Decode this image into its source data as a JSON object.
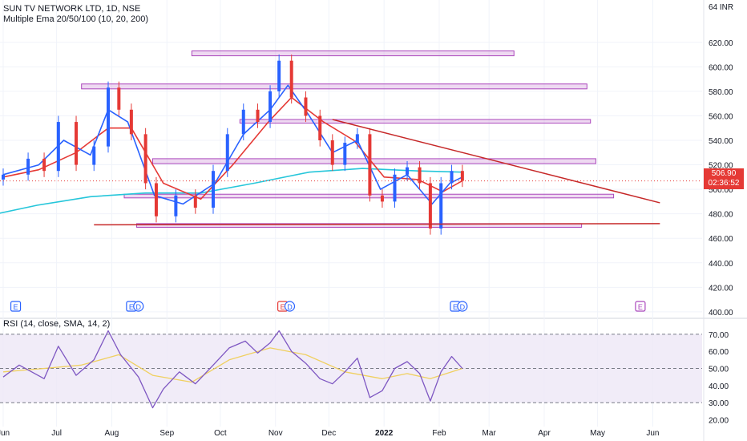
{
  "header": {
    "symbol_line": "SUN TV NETWORK LTD, 1D, NSE",
    "indicator_line": "Multiple Ema 20/50/100 (10, 20, 200)",
    "rsi_line": "RSI (14, close, SMA, 14, 2)",
    "currency_badge": "64 INR"
  },
  "last_price": {
    "value": "506.90",
    "countdown": "02:36:52",
    "color": "#e53935"
  },
  "colors": {
    "up_candle": "#2962ff",
    "down_candle": "#e53935",
    "ema_fast": "#2962ff",
    "ema_mid": "#e53935",
    "ema_slow": "#26c6da",
    "zones": "#ab47bc",
    "trendline": "#c62828",
    "rsi_line": "#7e57c2",
    "rsi_sma": "#f0d060",
    "rsi_band": "#ede7f6"
  },
  "event_markers": [
    {
      "label": "E",
      "x_date": "2021-06-08",
      "type": "earnings",
      "color": "#2962ff"
    },
    {
      "label": "E",
      "x_date": "2021-08-12",
      "type": "earnings",
      "color": "#2962ff"
    },
    {
      "label": "D",
      "x_date": "2021-08-16",
      "type": "dividend",
      "color": "#2962ff"
    },
    {
      "label": "E",
      "x_date": "2021-11-05",
      "type": "earnings",
      "color": "#e53935"
    },
    {
      "label": "D",
      "x_date": "2021-11-09",
      "type": "dividend",
      "color": "#2962ff"
    },
    {
      "label": "E",
      "x_date": "2022-02-10",
      "type": "earnings",
      "color": "#2962ff"
    },
    {
      "label": "D",
      "x_date": "2022-02-14",
      "type": "dividend",
      "color": "#2962ff"
    },
    {
      "label": "E",
      "x_date": "2022-05-25",
      "type": "earnings",
      "color": "#ab47bc"
    }
  ],
  "chart_data": [
    {
      "type": "candlestick",
      "title": "SUN TV NETWORK LTD, 1D, NSE",
      "x_ticks": [
        "Jun",
        "Jul",
        "Aug",
        "Sep",
        "Oct",
        "Nov",
        "Dec",
        "2022",
        "Feb",
        "Mar",
        "Apr",
        "May",
        "Jun"
      ],
      "y_ticks": [
        400,
        420,
        440,
        460,
        480,
        500,
        520,
        540,
        560,
        580,
        600,
        620
      ],
      "y_tick_labels": [
        "400.00",
        "420.00",
        "440.00",
        "460.00",
        "480.00",
        "500.00",
        "520.00",
        "540.00",
        "560.00",
        "580.00",
        "600.00",
        "620.00"
      ],
      "ylim": [
        396,
        648
      ],
      "grid": true,
      "close_series": [
        {
          "x": "2021-06-01",
          "y": 512
        },
        {
          "x": "2021-06-15",
          "y": 525
        },
        {
          "x": "2021-06-24",
          "y": 515
        },
        {
          "x": "2021-07-02",
          "y": 555
        },
        {
          "x": "2021-07-12",
          "y": 520
        },
        {
          "x": "2021-07-22",
          "y": 535
        },
        {
          "x": "2021-07-30",
          "y": 583
        },
        {
          "x": "2021-08-05",
          "y": 565
        },
        {
          "x": "2021-08-12",
          "y": 545
        },
        {
          "x": "2021-08-20",
          "y": 505
        },
        {
          "x": "2021-08-26",
          "y": 478
        },
        {
          "x": "2021-09-06",
          "y": 495
        },
        {
          "x": "2021-09-17",
          "y": 485
        },
        {
          "x": "2021-09-27",
          "y": 515
        },
        {
          "x": "2021-10-05",
          "y": 545
        },
        {
          "x": "2021-10-14",
          "y": 565
        },
        {
          "x": "2021-10-22",
          "y": 555
        },
        {
          "x": "2021-10-29",
          "y": 580
        },
        {
          "x": "2021-11-03",
          "y": 605
        },
        {
          "x": "2021-11-10",
          "y": 575
        },
        {
          "x": "2021-11-18",
          "y": 560
        },
        {
          "x": "2021-11-26",
          "y": 540
        },
        {
          "x": "2021-12-03",
          "y": 520
        },
        {
          "x": "2021-12-10",
          "y": 538
        },
        {
          "x": "2021-12-17",
          "y": 545
        },
        {
          "x": "2021-12-24",
          "y": 495
        },
        {
          "x": "2021-12-31",
          "y": 490
        },
        {
          "x": "2022-01-07",
          "y": 512
        },
        {
          "x": "2022-01-14",
          "y": 518
        },
        {
          "x": "2022-01-21",
          "y": 505
        },
        {
          "x": "2022-01-27",
          "y": 468
        },
        {
          "x": "2022-02-02",
          "y": 505
        },
        {
          "x": "2022-02-08",
          "y": 515
        },
        {
          "x": "2022-02-14",
          "y": 506.9
        }
      ],
      "ema_fast": [
        {
          "x": "2021-06-01",
          "y": 512
        },
        {
          "x": "2021-06-21",
          "y": 520
        },
        {
          "x": "2021-07-05",
          "y": 540
        },
        {
          "x": "2021-07-20",
          "y": 528
        },
        {
          "x": "2021-07-30",
          "y": 565
        },
        {
          "x": "2021-08-10",
          "y": 555
        },
        {
          "x": "2021-08-25",
          "y": 495
        },
        {
          "x": "2021-09-10",
          "y": 488
        },
        {
          "x": "2021-09-28",
          "y": 505
        },
        {
          "x": "2021-10-14",
          "y": 545
        },
        {
          "x": "2021-10-29",
          "y": 565
        },
        {
          "x": "2021-11-08",
          "y": 585
        },
        {
          "x": "2021-11-20",
          "y": 560
        },
        {
          "x": "2021-12-03",
          "y": 530
        },
        {
          "x": "2021-12-17",
          "y": 540
        },
        {
          "x": "2021-12-30",
          "y": 500
        },
        {
          "x": "2022-01-14",
          "y": 512
        },
        {
          "x": "2022-01-28",
          "y": 488
        },
        {
          "x": "2022-02-07",
          "y": 505
        },
        {
          "x": "2022-02-14",
          "y": 510
        }
      ],
      "ema_mid": [
        {
          "x": "2021-06-01",
          "y": 510
        },
        {
          "x": "2021-06-21",
          "y": 516
        },
        {
          "x": "2021-07-12",
          "y": 530
        },
        {
          "x": "2021-07-30",
          "y": 550
        },
        {
          "x": "2021-08-12",
          "y": 550
        },
        {
          "x": "2021-08-30",
          "y": 505
        },
        {
          "x": "2021-09-20",
          "y": 492
        },
        {
          "x": "2021-10-08",
          "y": 520
        },
        {
          "x": "2021-10-28",
          "y": 555
        },
        {
          "x": "2021-11-10",
          "y": 575
        },
        {
          "x": "2021-11-28",
          "y": 555
        },
        {
          "x": "2021-12-15",
          "y": 540
        },
        {
          "x": "2022-01-01",
          "y": 510
        },
        {
          "x": "2022-01-20",
          "y": 508
        },
        {
          "x": "2022-02-03",
          "y": 498
        },
        {
          "x": "2022-02-14",
          "y": 507
        }
      ],
      "ema_slow": [
        {
          "x": "2021-05-25",
          "y": 479
        },
        {
          "x": "2021-06-20",
          "y": 487
        },
        {
          "x": "2021-07-20",
          "y": 494
        },
        {
          "x": "2021-08-20",
          "y": 497
        },
        {
          "x": "2021-09-20",
          "y": 497
        },
        {
          "x": "2021-10-20",
          "y": 505
        },
        {
          "x": "2021-11-20",
          "y": 514
        },
        {
          "x": "2021-12-20",
          "y": 517
        },
        {
          "x": "2022-01-20",
          "y": 515
        },
        {
          "x": "2022-02-14",
          "y": 514
        }
      ],
      "resistance_zones": [
        {
          "from": "2021-09-15",
          "to": "2022-03-15",
          "low": 609,
          "high": 613
        },
        {
          "from": "2021-07-15",
          "to": "2022-04-25",
          "low": 582,
          "high": 586
        },
        {
          "from": "2021-10-12",
          "to": "2022-04-27",
          "low": 554,
          "high": 557
        },
        {
          "from": "2021-08-24",
          "to": "2022-04-30",
          "low": 521,
          "high": 525
        },
        {
          "from": "2021-08-08",
          "to": "2022-05-10",
          "low": 493,
          "high": 496
        },
        {
          "from": "2021-08-15",
          "to": "2022-04-22",
          "low": 469,
          "high": 472
        }
      ],
      "trendlines": [
        {
          "from": {
            "x": "2021-12-03",
            "y": 557
          },
          "to": {
            "x": "2022-06-05",
            "y": 489
          }
        },
        {
          "from": {
            "x": "2021-07-22",
            "y": 471
          },
          "to": {
            "x": "2022-06-05",
            "y": 472
          }
        }
      ]
    },
    {
      "type": "line",
      "title": "RSI (14, close, SMA, 14, 2)",
      "y_ticks": [
        20,
        30,
        40,
        50,
        60,
        70
      ],
      "y_tick_labels": [
        "20.00",
        "30.00",
        "40.00",
        "50.00",
        "60.00",
        "70.00"
      ],
      "ylim": [
        17,
        76
      ],
      "bands": {
        "upper": 70,
        "middle": 50,
        "lower": 30
      },
      "series": [
        {
          "values": [
            {
              "x": "2021-06-01",
              "y": 45
            },
            {
              "x": "2021-06-10",
              "y": 52
            },
            {
              "x": "2021-06-24",
              "y": 44
            },
            {
              "x": "2021-07-02",
              "y": 63
            },
            {
              "x": "2021-07-12",
              "y": 46
            },
            {
              "x": "2021-07-22",
              "y": 55
            },
            {
              "x": "2021-07-30",
              "y": 72
            },
            {
              "x": "2021-08-06",
              "y": 58
            },
            {
              "x": "2021-08-16",
              "y": 45
            },
            {
              "x": "2021-08-24",
              "y": 27
            },
            {
              "x": "2021-08-30",
              "y": 38
            },
            {
              "x": "2021-09-08",
              "y": 48
            },
            {
              "x": "2021-09-17",
              "y": 41
            },
            {
              "x": "2021-09-27",
              "y": 52
            },
            {
              "x": "2021-10-06",
              "y": 62
            },
            {
              "x": "2021-10-15",
              "y": 66
            },
            {
              "x": "2021-10-22",
              "y": 59
            },
            {
              "x": "2021-10-29",
              "y": 65
            },
            {
              "x": "2021-11-03",
              "y": 72
            },
            {
              "x": "2021-11-10",
              "y": 60
            },
            {
              "x": "2021-11-18",
              "y": 53
            },
            {
              "x": "2021-11-26",
              "y": 44
            },
            {
              "x": "2021-12-03",
              "y": 41
            },
            {
              "x": "2021-12-10",
              "y": 48
            },
            {
              "x": "2021-12-17",
              "y": 56
            },
            {
              "x": "2021-12-24",
              "y": 33
            },
            {
              "x": "2021-12-31",
              "y": 37
            },
            {
              "x": "2022-01-07",
              "y": 50
            },
            {
              "x": "2022-01-14",
              "y": 54
            },
            {
              "x": "2022-01-21",
              "y": 47
            },
            {
              "x": "2022-01-27",
              "y": 31
            },
            {
              "x": "2022-02-02",
              "y": 48
            },
            {
              "x": "2022-02-08",
              "y": 57
            },
            {
              "x": "2022-02-14",
              "y": 50
            }
          ]
        },
        {
          "values": [
            {
              "x": "2021-06-01",
              "y": 48
            },
            {
              "x": "2021-06-24",
              "y": 50
            },
            {
              "x": "2021-07-15",
              "y": 52
            },
            {
              "x": "2021-08-05",
              "y": 58
            },
            {
              "x": "2021-08-24",
              "y": 46
            },
            {
              "x": "2021-09-15",
              "y": 42
            },
            {
              "x": "2021-10-06",
              "y": 55
            },
            {
              "x": "2021-10-29",
              "y": 62
            },
            {
              "x": "2021-11-18",
              "y": 58
            },
            {
              "x": "2021-12-10",
              "y": 48
            },
            {
              "x": "2021-12-31",
              "y": 44
            },
            {
              "x": "2022-01-14",
              "y": 47
            },
            {
              "x": "2022-01-27",
              "y": 44
            },
            {
              "x": "2022-02-14",
              "y": 50
            }
          ]
        }
      ]
    }
  ]
}
